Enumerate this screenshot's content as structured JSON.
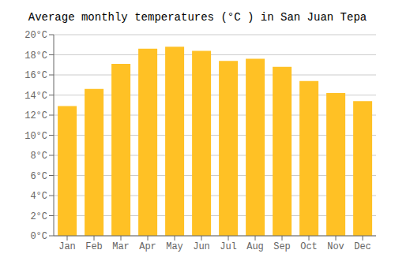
{
  "chart_data": {
    "type": "bar",
    "title": "Average monthly temperatures (°C ) in San Juan Tepa",
    "categories": [
      "Jan",
      "Feb",
      "Mar",
      "Apr",
      "May",
      "Jun",
      "Jul",
      "Aug",
      "Sep",
      "Oct",
      "Nov",
      "Dec"
    ],
    "values": [
      12.9,
      14.6,
      17.1,
      18.6,
      18.8,
      18.4,
      17.4,
      17.6,
      16.8,
      15.4,
      14.2,
      13.4
    ],
    "color": "#FFC125",
    "ylim": [
      0,
      20
    ],
    "yticks": [
      {
        "value": 0,
        "label": "0°C"
      },
      {
        "value": 2,
        "label": "2°C"
      },
      {
        "value": 4,
        "label": "4°C"
      },
      {
        "value": 6,
        "label": "6°C"
      },
      {
        "value": 8,
        "label": "8°C"
      },
      {
        "value": 10,
        "label": "10°C"
      },
      {
        "value": 12,
        "label": "12°C"
      },
      {
        "value": 14,
        "label": "14°C"
      },
      {
        "value": 16,
        "label": "16°C"
      },
      {
        "value": 18,
        "label": "18°C"
      },
      {
        "value": 20,
        "label": "20°C"
      }
    ],
    "grid": true
  }
}
